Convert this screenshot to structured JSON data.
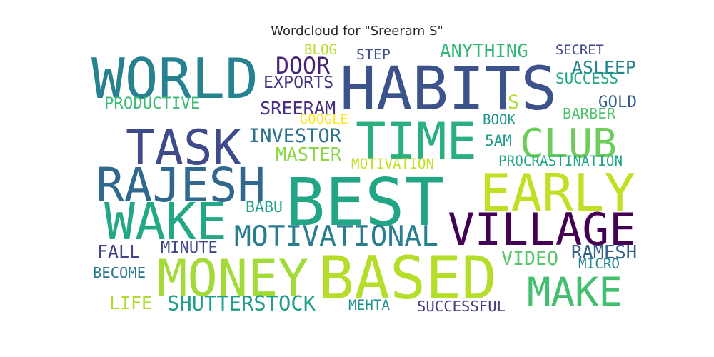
{
  "chart_data": {
    "type": "wordcloud",
    "title": "Wordcloud for \"Sreeram S\"",
    "words": [
      {
        "text": "HABITS",
        "color": "#3b528b"
      },
      {
        "text": "BEST",
        "color": "#21a585"
      },
      {
        "text": "BASED",
        "color": "#b5de2b"
      },
      {
        "text": "WORLD",
        "color": "#26828e"
      },
      {
        "text": "TIME",
        "color": "#2ab07f"
      },
      {
        "text": "TASK",
        "color": "#3e4a89"
      },
      {
        "text": "RAJESH",
        "color": "#31688e"
      },
      {
        "text": "EARLY",
        "color": "#c2df23"
      },
      {
        "text": "VILLAGE",
        "color": "#440154"
      },
      {
        "text": "MONEY",
        "color": "#a2da37"
      },
      {
        "text": "WAKE",
        "color": "#22a884"
      },
      {
        "text": "CLUB",
        "color": "#6ccd5a"
      },
      {
        "text": "MAKE",
        "color": "#44bf70"
      },
      {
        "text": "MOTIVATIONAL",
        "color": "#287d8e"
      },
      {
        "text": "SHUTTERSTOCK",
        "color": "#1f9e89"
      },
      {
        "text": "ANYTHING",
        "color": "#35b779"
      },
      {
        "text": "DOOR",
        "color": "#482475"
      },
      {
        "text": "EXPORTS",
        "color": "#46337e"
      },
      {
        "text": "ASLEEP",
        "color": "#25848e"
      },
      {
        "text": "SREERAM",
        "color": "#472d7b"
      },
      {
        "text": "INVESTOR",
        "color": "#2c728e"
      },
      {
        "text": "MASTER",
        "color": "#8ed645"
      },
      {
        "text": "RAMESH",
        "color": "#33638d"
      },
      {
        "text": "VIDEO",
        "color": "#54c568"
      },
      {
        "text": "FALL",
        "color": "#414487"
      },
      {
        "text": "MINUTE",
        "color": "#3f4788"
      },
      {
        "text": "BECOME",
        "color": "#2a788e"
      },
      {
        "text": "LIFE",
        "color": "#addc30"
      },
      {
        "text": "SUCCESSFUL",
        "color": "#443983"
      },
      {
        "text": "MEHTA",
        "color": "#20928c"
      },
      {
        "text": "MICRO",
        "color": "#23888e"
      },
      {
        "text": "BABU",
        "color": "#1fa187"
      },
      {
        "text": "PRODUCTIVE",
        "color": "#3bbb75"
      },
      {
        "text": "BLOG",
        "color": "#b8de29"
      },
      {
        "text": "STEP",
        "color": "#3d4e8a"
      },
      {
        "text": "SECRET",
        "color": "#404688"
      },
      {
        "text": "SUCCESS",
        "color": "#22a785"
      },
      {
        "text": "GOLD",
        "color": "#355f8d"
      },
      {
        "text": "BARBER",
        "color": "#4ec36b"
      },
      {
        "text": "BOOK",
        "color": "#1f958b"
      },
      {
        "text": "5AM",
        "color": "#1e9c89"
      },
      {
        "text": "PROCRASTINATION",
        "color": "#20a486"
      },
      {
        "text": "MOTIVATION",
        "color": "#c5e021"
      },
      {
        "text": "GOOGLE",
        "color": "#fde725"
      },
      {
        "text": "S",
        "color": "#b0dd2f"
      }
    ]
  }
}
